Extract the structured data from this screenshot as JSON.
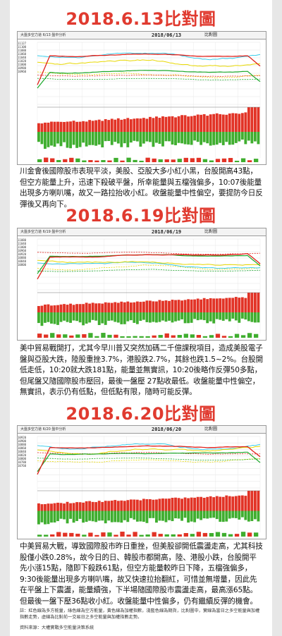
{
  "sections": [
    {
      "title": "2018.6.13比對圖",
      "chart_header": {
        "title_text": "大盤多空力道 6/13 盤中分析",
        "date": "2018/06/13",
        "tag": "比對圖"
      },
      "y_ticks": [
        "11127",
        "11100",
        "11080",
        "11060",
        "11040",
        "11020",
        "11000",
        "10980",
        "10960"
      ],
      "paragraph": "川金會後國際股市表現平淡，美股、亞股大多小紅小黑，台股開高43點，但空方能量上升，迅速下殺破平盤，所幸能量與五檔強偏多，10:07後能量出現多方喇叭嘴，故又一路拉抬收小紅。收盤能量中性偏空，要提防今日反彈後又再向下。"
    },
    {
      "title": "2018.6.19比對圖",
      "chart_header": {
        "title_text": "大盤多空力道 6/19 盤中分析",
        "date": "2018/06/19",
        "tag": "比對圖"
      },
      "y_ticks": [
        "11080",
        "11040",
        "11000",
        "10960",
        "10920",
        "10880",
        "10840",
        "10800"
      ],
      "paragraph": "美中貿易戰開打，尤其今早川普又突然加碼二千億課稅項目，造成美股電子盤與亞股大跌，陸股重挫3.7%，港股跌2.7%，其餘也跌1.5~2%。台股開低走低，10:20就大跌181點，能量並無實訊，10:20後略作反彈50多點，但尾盤又隨國際股市壓回，最後一盤壓 27點收最低。收盤能量中性偏空，無實訊，表示仍有低點，但低點有限，隨時可能反彈。"
    },
    {
      "title": "2018.6.20比對圖",
      "chart_header": {
        "title_text": "大盤多空力道 6/20 盤中分析",
        "date": "2018/06/20",
        "tag": "比對圖"
      },
      "y_ticks": [
        "10920",
        "10900",
        "10880",
        "10860",
        "10840",
        "10820",
        "10800",
        "10780",
        "10760"
      ],
      "paragraph": "中美貿易大戰，導致國際股市昨日重挫，但美股卻開低震盪走高，尤其科技股僅小跌0.28%，故今日的日、韓股市都開高，陸、港股小跌，台股開平先小漲15點，隨即下殺跌61點，但空方能量較昨日下降，五檔強偏多，9:30後能量出現多方喇叭嘴，故又快速拉抬翻紅，可惜並無增量，因此先在平盤上下震盪，能量續強，下半場隨國際股市震盪走高，最高漲65點。但最後一盤下壓36點收小紅。收盤能量中性偏多，仍有繼續反彈的機會。"
    }
  ],
  "footnote": {
    "note": "註：紅色線為多方能量，綠色線為空方能量，黃色線為加權指數，淺藍色線為期貨，比對圖中，實線為當日之多空能量與加權指數走勢，虛線為比對前一交易日之多空能量與加權指數走勢。",
    "source": "資料來源：大權實戰多空能量決策系統"
  },
  "colors": {
    "title": "#e03a2f",
    "bull": "#e0201a",
    "bear": "#1aa82a",
    "index": "#e8d800",
    "futures": "#28c8e8"
  }
}
